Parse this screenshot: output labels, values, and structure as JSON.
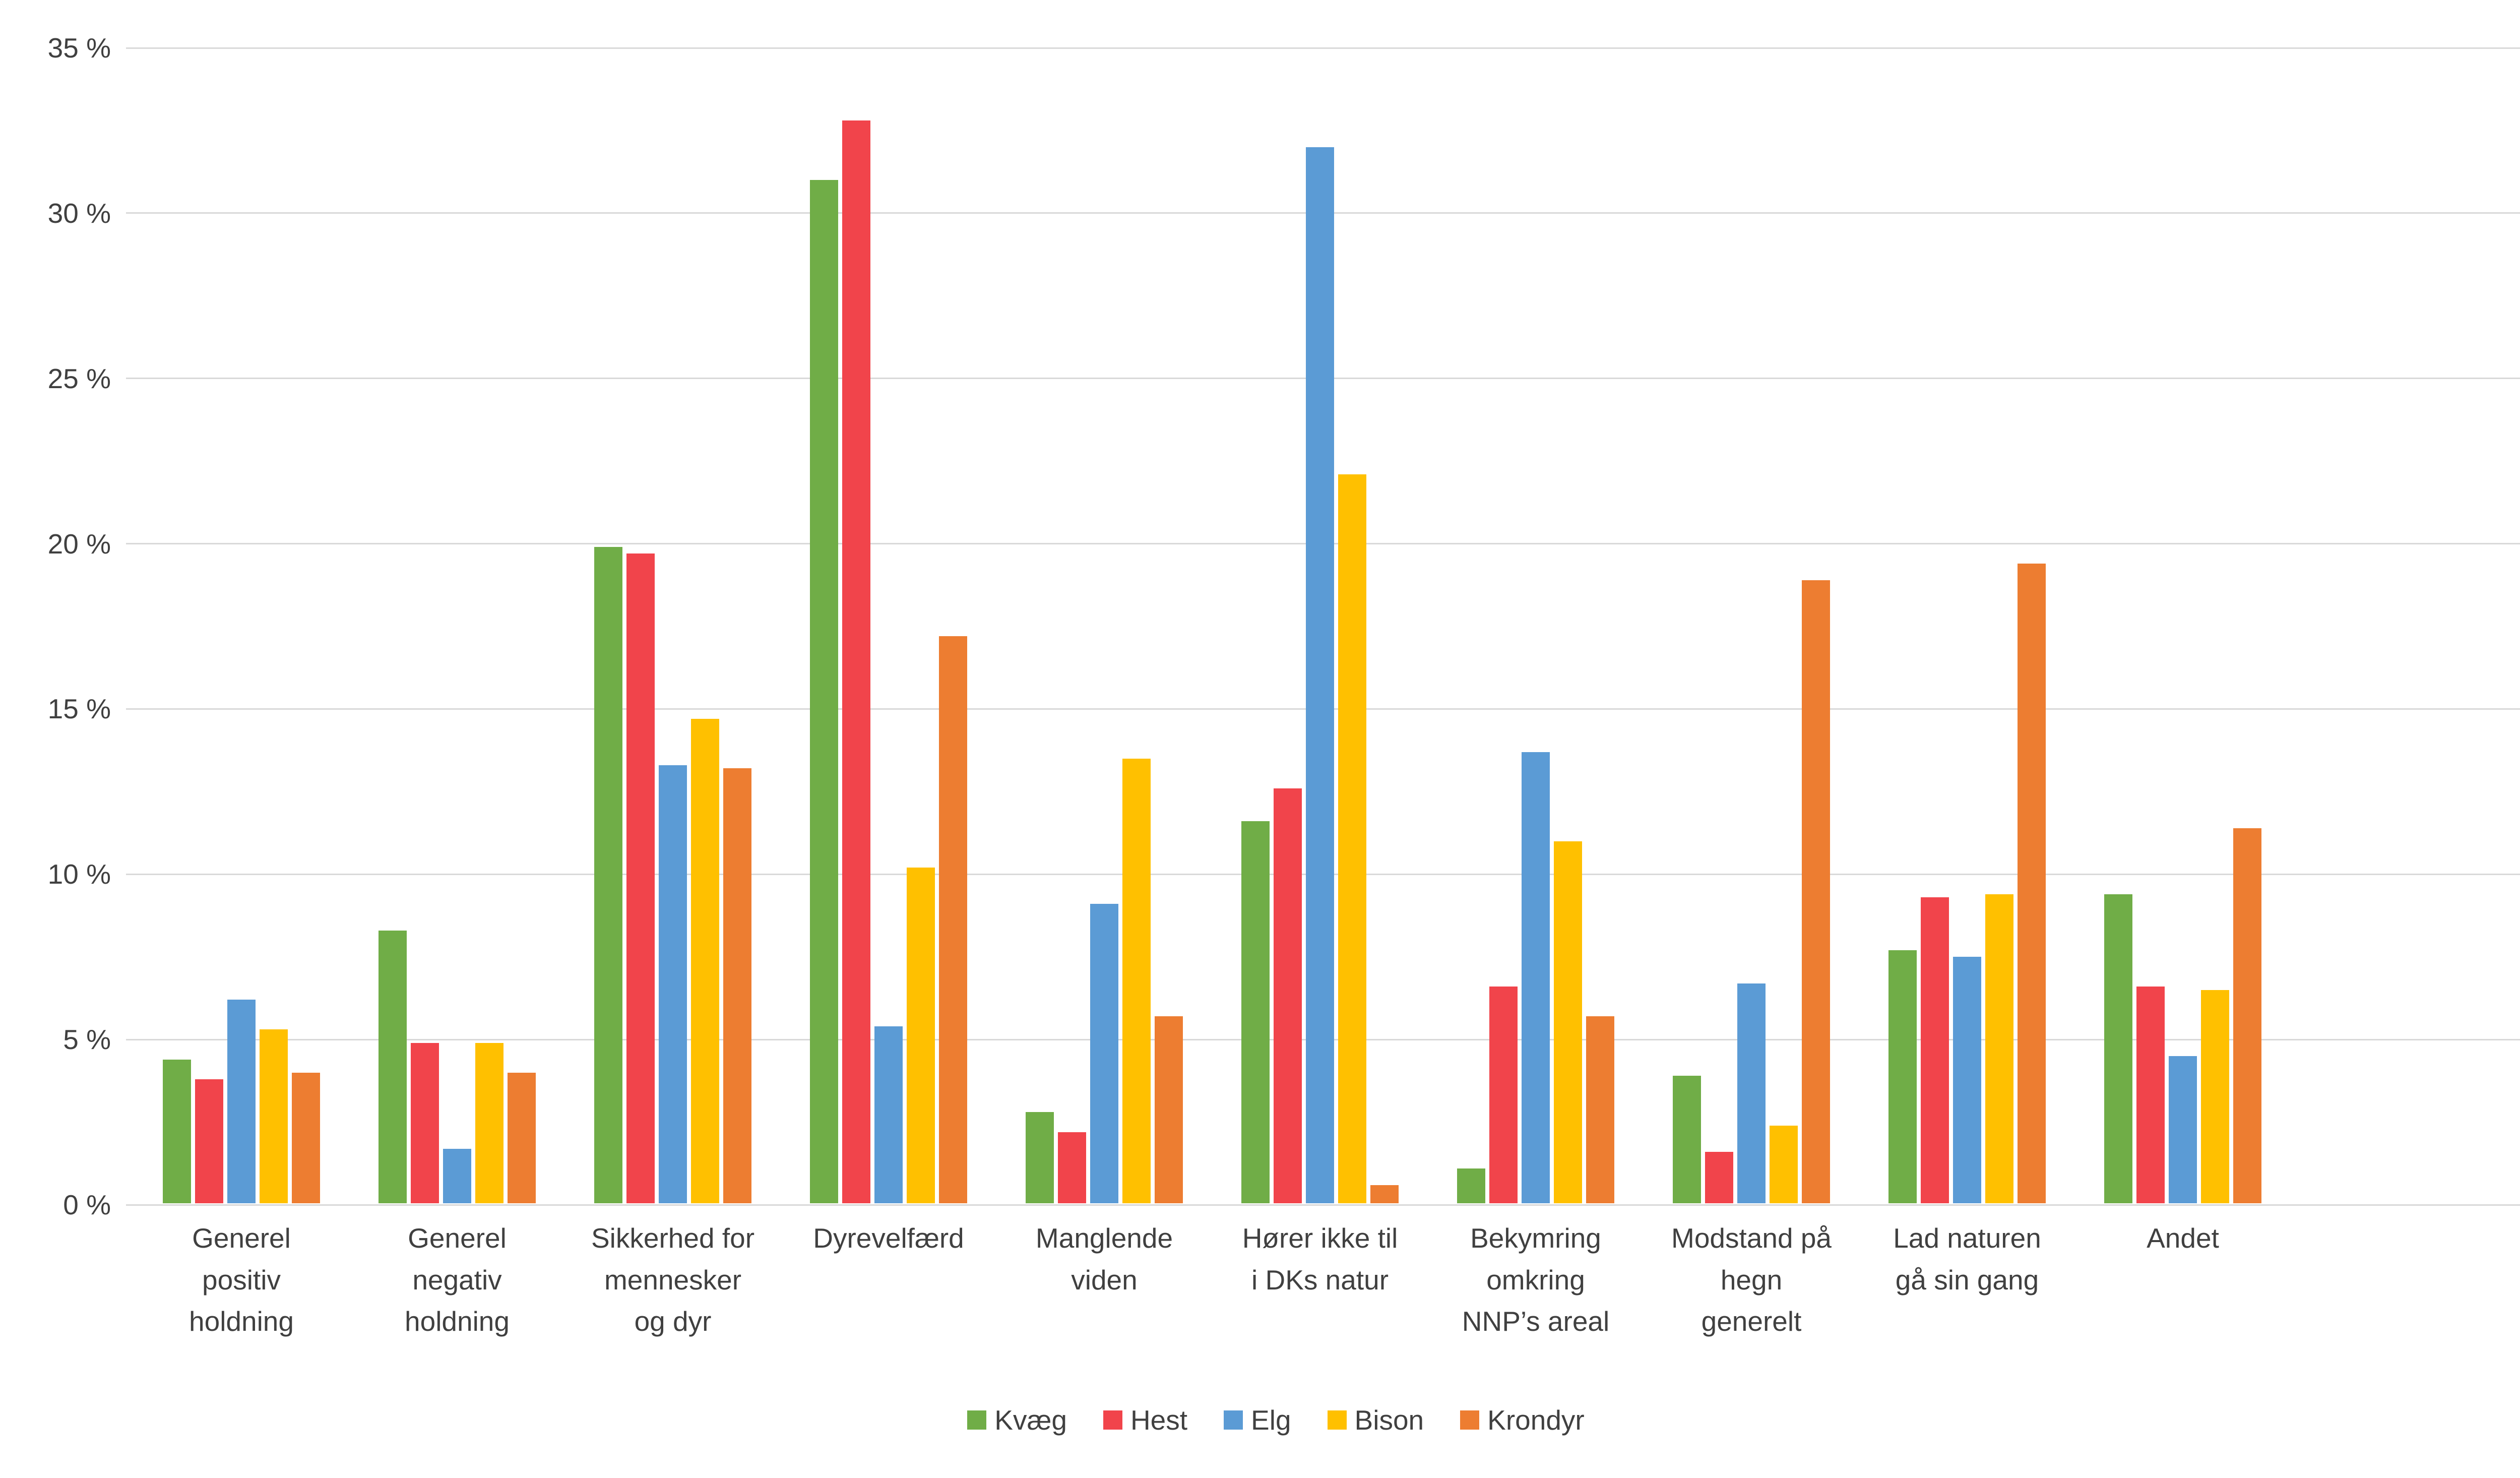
{
  "chart_data": {
    "type": "bar",
    "title": "",
    "xlabel": "",
    "ylabel": "",
    "ylim": [
      0,
      35
    ],
    "ytick_step": 5,
    "ytick_suffix": " %",
    "grid": true,
    "legend_position": "bottom",
    "categories": [
      "Generel positiv holdning",
      "Generel negativ holdning",
      "Sikkerhed for mennesker og dyr",
      "Dyrevelfærd",
      "Manglende viden",
      "Hører ikke til i DKs natur",
      "Bekymring omkring NNP’s areal",
      "Modstand på hegn generelt",
      "Lad naturen gå sin gang",
      "Andet"
    ],
    "category_lines": [
      "Generel\npositiv\nholdning",
      "Generel\nnegativ\nholdning",
      "Sikkerhed for\nmennesker\nog dyr",
      "Dyrevelfærd",
      "Manglende\nviden",
      "Hører ikke til\ni DKs natur",
      "Bekymring\nomkring\nNNP’s areal",
      "Modstand på\nhegn\ngenerelt",
      "Lad naturen\ngå sin gang",
      "Andet"
    ],
    "series": [
      {
        "name": "Kvæg",
        "color": "#70AD47",
        "values": [
          4.4,
          8.3,
          19.9,
          31.0,
          2.8,
          11.6,
          1.1,
          3.9,
          7.7,
          9.4
        ]
      },
      {
        "name": "Hest",
        "color": "#F1444B",
        "values": [
          3.8,
          4.9,
          19.7,
          32.8,
          2.2,
          12.6,
          6.6,
          1.6,
          9.3,
          6.6
        ]
      },
      {
        "name": "Elg",
        "color": "#5B9BD5",
        "values": [
          6.2,
          1.7,
          13.3,
          5.4,
          9.1,
          32.0,
          13.7,
          6.7,
          7.5,
          4.5
        ]
      },
      {
        "name": "Bison",
        "color": "#FFC000",
        "values": [
          5.3,
          4.9,
          14.7,
          10.2,
          13.5,
          22.1,
          11.0,
          2.4,
          9.4,
          6.5
        ]
      },
      {
        "name": "Krondyr",
        "color": "#ED7D31",
        "values": [
          4.0,
          4.0,
          13.2,
          17.2,
          5.7,
          0.6,
          5.7,
          18.9,
          19.4,
          11.4
        ]
      }
    ]
  },
  "colors": {
    "background": "#FFFFFF",
    "gridline": "#D9D9D9",
    "text": "#404040"
  }
}
